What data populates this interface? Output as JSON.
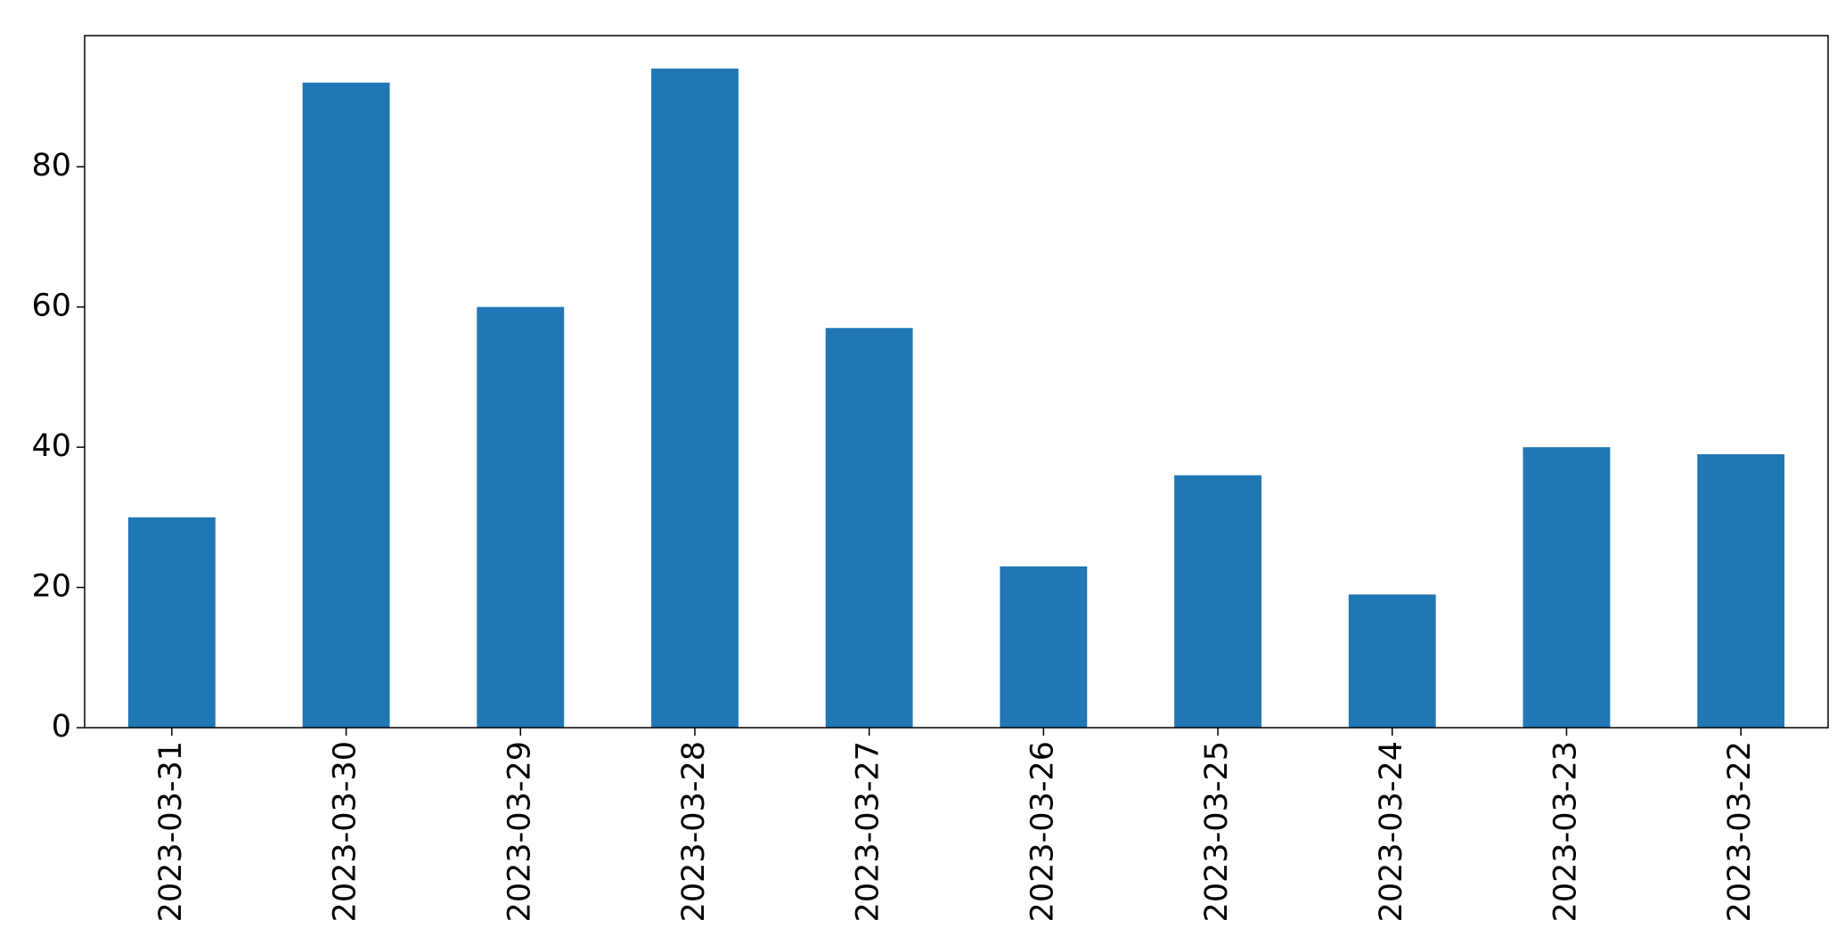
{
  "chart_data": {
    "type": "bar",
    "categories": [
      "2023-03-31",
      "2023-03-30",
      "2023-03-29",
      "2023-03-28",
      "2023-03-27",
      "2023-03-26",
      "2023-03-25",
      "2023-03-24",
      "2023-03-23",
      "2023-03-22"
    ],
    "values": [
      30,
      92,
      60,
      94,
      57,
      23,
      36,
      19,
      40,
      39
    ],
    "color": "#1f77b4",
    "ylim": [
      0,
      98.7
    ],
    "yticks": [
      0,
      20,
      40,
      60,
      80
    ],
    "grid": false
  }
}
